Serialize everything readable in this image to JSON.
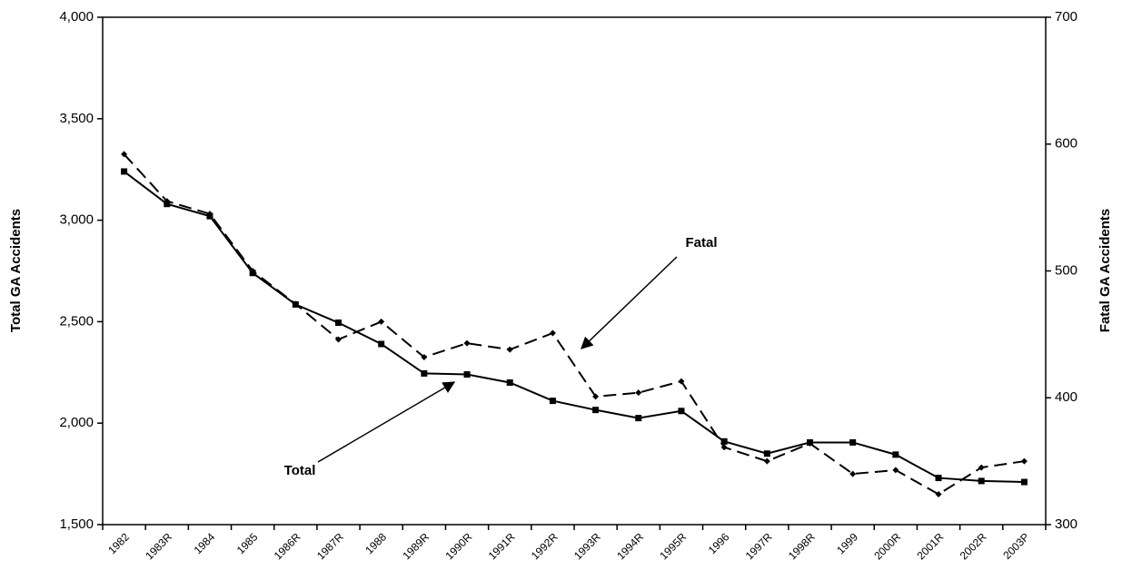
{
  "chart_data": {
    "type": "line",
    "categories": [
      "1982",
      "1983R",
      "1984",
      "1985",
      "1986R",
      "1987R",
      "1988",
      "1989R",
      "1990R",
      "1991R",
      "1992R",
      "1993R",
      "1994R",
      "1995R",
      "1996",
      "1997R",
      "1998R",
      "1999",
      "2000R",
      "2001R",
      "2002R",
      "2003P"
    ],
    "series": [
      {
        "name": "Total",
        "color": "#000000",
        "dash": false,
        "marker": "square",
        "values": [
          3240,
          3080,
          3020,
          2740,
          2585,
          2495,
          2390,
          2245,
          2240,
          2200,
          2110,
          2065,
          2025,
          2060,
          1910,
          1850,
          1905,
          1905,
          1845,
          1730,
          1715,
          1710
        ]
      },
      {
        "name": "Fatal",
        "color": "#000000",
        "dash": true,
        "marker": "diamond",
        "axis": "y2",
        "values": [
          592,
          555,
          545,
          500,
          474,
          446,
          460,
          432,
          443,
          438,
          451,
          401,
          404,
          413,
          361,
          350,
          364,
          340,
          343,
          324,
          345,
          350
        ]
      }
    ],
    "ylabel": "Total GA Accidents",
    "y2label": "Fatal GA Accidents",
    "ylim": [
      1500,
      4000
    ],
    "yticks": [
      {
        "value": 1500,
        "label": "1,500"
      },
      {
        "value": 2000,
        "label": "2,000"
      },
      {
        "value": 2500,
        "label": "2,500"
      },
      {
        "value": 3000,
        "label": "3,000"
      },
      {
        "value": 3500,
        "label": "3,500"
      },
      {
        "value": 4000,
        "label": "4,000"
      }
    ],
    "y2lim": [
      300,
      700
    ],
    "y2ticks": [
      300,
      400,
      500,
      600,
      700
    ],
    "grid": false
  }
}
